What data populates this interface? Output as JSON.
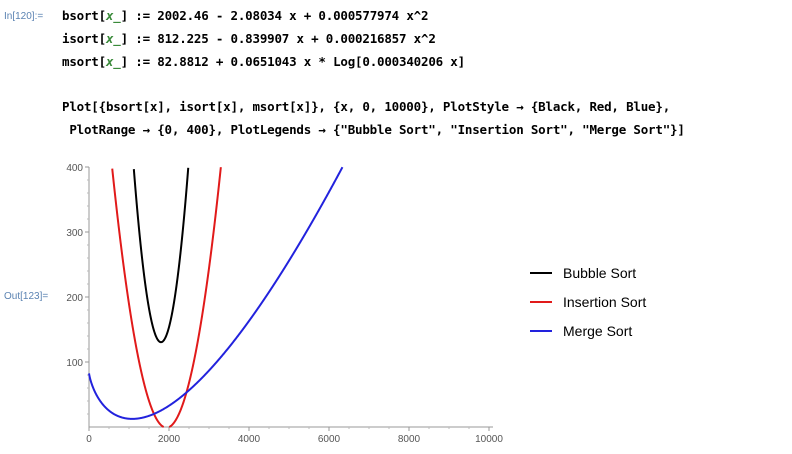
{
  "input_cell": {
    "label": "In[120]:=",
    "lines": [
      {
        "name": "bsort",
        "lhs": "bsort[",
        "pat": "x_",
        "close": "] := ",
        "rhs": "2002.46 - 2.08034 x + 0.000577974 x^2"
      },
      {
        "name": "isort",
        "lhs": "isort[",
        "pat": "x_",
        "close": "] := ",
        "rhs": "812.225 - 0.839907 x + 0.000216857 x^2"
      },
      {
        "name": "msort",
        "lhs": "msort[",
        "pat": "x_",
        "close": "] := ",
        "rhs": "82.8812 + 0.0651043 x * Log[0.000340206 x]"
      }
    ],
    "plot_line1": "Plot[{bsort[x], isort[x], msort[x]}, {x, 0, 10000}, PlotStyle → {Black, Red, Blue},",
    "plot_line2": " PlotRange → {0, 400}, PlotLegends → {\"Bubble Sort\", \"Insertion Sort\", \"Merge Sort\"}]"
  },
  "output_cell": {
    "label": "Out[123]="
  },
  "chart_data": {
    "type": "line",
    "xlim": [
      0,
      10000
    ],
    "ylim": [
      0,
      400
    ],
    "x_ticks": [
      "0",
      "2000",
      "4000",
      "6000",
      "8000",
      "10000"
    ],
    "y_ticks": [
      "100",
      "200",
      "300",
      "400"
    ],
    "grid": false,
    "legend_position": "right",
    "series": [
      {
        "name": "Bubble Sort",
        "color": "#000000",
        "formula": "2002.46 - 2.08034 x + 0.000577974 x^2"
      },
      {
        "name": "Insertion Sort",
        "color": "#e11a1a",
        "formula": "812.225 - 0.839907 x + 0.000216857 x^2"
      },
      {
        "name": "Merge Sort",
        "color": "#2222dd",
        "formula": "82.8812 + 0.0651043 x Log[0.000340206 x]"
      }
    ],
    "coefficients": {
      "bubble": [
        2002.46,
        -2.08034,
        0.000577974
      ],
      "insertion": [
        812.225,
        -0.839907,
        0.000216857
      ],
      "merge": [
        82.8812,
        0.0651043,
        0.000340206
      ]
    }
  }
}
